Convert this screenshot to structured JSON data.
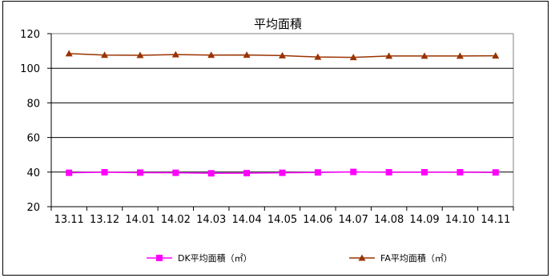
{
  "chart_data": {
    "type": "line",
    "title": "平均面積",
    "xlabel": "",
    "ylabel": "",
    "categories": [
      "13.11",
      "13.12",
      "14.01",
      "14.02",
      "14.03",
      "14.04",
      "14.05",
      "14.06",
      "14.07",
      "14.08",
      "14.09",
      "14.10",
      "14.11"
    ],
    "ylim": [
      20,
      120
    ],
    "yticks": [
      20,
      40,
      60,
      80,
      100,
      120
    ],
    "grid": true,
    "legend_position": "bottom",
    "series": [
      {
        "name": "DK平均面積（㎡）",
        "color": "#ff00ff",
        "marker": "square",
        "values": [
          39.6,
          39.9,
          39.7,
          39.6,
          39.3,
          39.4,
          39.6,
          39.8,
          40.1,
          39.9,
          39.9,
          39.9,
          39.8
        ]
      },
      {
        "name": "FA平均面積（㎡）",
        "color": "#993300",
        "marker": "triangle",
        "values": [
          108.5,
          107.6,
          107.5,
          107.9,
          107.6,
          107.7,
          107.3,
          106.5,
          106.3,
          107.1,
          107.1,
          107.1,
          107.2
        ]
      }
    ]
  }
}
